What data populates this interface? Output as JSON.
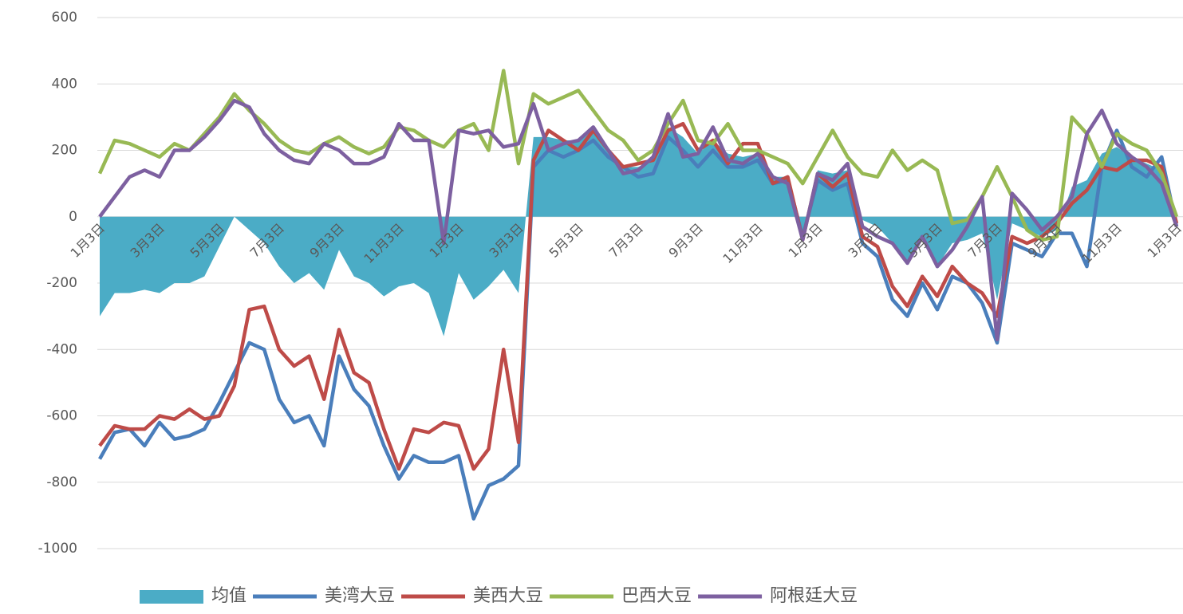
{
  "chart_data": {
    "type": "line",
    "categories": [
      "1月3日",
      null,
      null,
      null,
      "3月3日",
      null,
      null,
      null,
      "5月3日",
      null,
      null,
      null,
      "7月3日",
      null,
      null,
      null,
      "9月3日",
      null,
      null,
      null,
      "11月3日",
      null,
      null,
      null,
      "1月3日",
      null,
      null,
      null,
      "3月3日",
      null,
      null,
      null,
      "5月3日",
      null,
      null,
      null,
      "7月3日",
      null,
      null,
      null,
      "9月3日",
      null,
      null,
      null,
      "11月3日",
      null,
      null,
      null,
      "1月3日",
      null,
      null,
      null,
      "3月3日",
      null,
      null,
      null,
      "5月3日",
      null,
      null,
      null,
      "7月3日",
      null,
      null,
      null,
      "9月3日",
      null,
      null,
      null,
      "11月3日",
      null,
      null,
      null,
      "1月3日"
    ],
    "ylim": [
      -1000,
      600
    ],
    "yticks": [
      -1000,
      -800,
      -600,
      -400,
      -200,
      0,
      200,
      400,
      600
    ],
    "grid": true,
    "legend": "bottom",
    "series": [
      {
        "name": "均值",
        "type": "area",
        "color": "#4bacc6",
        "values": [
          -300,
          -230,
          -230,
          -220,
          -230,
          -200,
          -200,
          -180,
          -90,
          0,
          -40,
          -80,
          -150,
          -200,
          -170,
          -220,
          -100,
          -180,
          -200,
          -240,
          -210,
          -200,
          -230,
          -360,
          -170,
          -250,
          -210,
          -160,
          -230,
          240,
          240,
          230,
          230,
          260,
          210,
          150,
          150,
          170,
          270,
          240,
          190,
          230,
          190,
          180,
          190,
          120,
          120,
          -50,
          140,
          130,
          140,
          -10,
          -30,
          -80,
          -140,
          -60,
          -150,
          -80,
          -70,
          -50,
          -250,
          -20,
          -40,
          -60,
          -40,
          90,
          110,
          190,
          210,
          180,
          160,
          140,
          -20
        ]
      },
      {
        "name": "美湾大豆",
        "type": "line",
        "color": "#4a7ebb",
        "values": [
          -730,
          -650,
          -640,
          -690,
          -620,
          -670,
          -660,
          -640,
          -560,
          -470,
          -380,
          -400,
          -550,
          -620,
          -600,
          -690,
          -420,
          -520,
          -570,
          -690,
          -790,
          -720,
          -740,
          -740,
          -720,
          -910,
          -810,
          -790,
          -750,
          150,
          200,
          180,
          200,
          230,
          180,
          150,
          120,
          130,
          240,
          200,
          150,
          200,
          150,
          150,
          170,
          100,
          110,
          -60,
          110,
          80,
          100,
          -80,
          -120,
          -250,
          -300,
          -200,
          -280,
          -180,
          -200,
          -260,
          -380,
          -80,
          -100,
          -120,
          -50,
          -50,
          -150,
          150,
          260,
          150,
          120,
          180,
          -30
        ]
      },
      {
        "name": "美西大豆",
        "type": "line",
        "color": "#be4b48",
        "values": [
          -690,
          -630,
          -640,
          -640,
          -600,
          -610,
          -580,
          -610,
          -600,
          -510,
          -280,
          -270,
          -400,
          -450,
          -420,
          -550,
          -340,
          -470,
          -500,
          -640,
          -760,
          -640,
          -650,
          -620,
          -630,
          -760,
          -700,
          -400,
          -680,
          170,
          260,
          230,
          200,
          260,
          200,
          150,
          160,
          170,
          260,
          280,
          200,
          230,
          160,
          220,
          220,
          100,
          120,
          -70,
          130,
          90,
          130,
          -60,
          -90,
          -210,
          -270,
          -180,
          -240,
          -150,
          -200,
          -230,
          -300,
          -60,
          -80,
          -60,
          -20,
          40,
          80,
          150,
          140,
          170,
          170,
          150,
          -20
        ]
      },
      {
        "name": "巴西大豆",
        "type": "line",
        "color": "#98b954",
        "values": [
          130,
          230,
          220,
          200,
          180,
          220,
          200,
          250,
          300,
          370,
          320,
          280,
          230,
          200,
          190,
          220,
          240,
          210,
          190,
          210,
          270,
          260,
          230,
          210,
          260,
          280,
          200,
          440,
          160,
          370,
          340,
          360,
          380,
          320,
          260,
          230,
          170,
          200,
          280,
          350,
          230,
          220,
          280,
          200,
          200,
          180,
          160,
          100,
          180,
          260,
          180,
          130,
          120,
          200,
          140,
          170,
          140,
          -20,
          -10,
          60,
          150,
          60,
          -40,
          -70,
          -60,
          300,
          250,
          150,
          250,
          220,
          200,
          130,
          0
        ]
      },
      {
        "name": "阿根廷大豆",
        "type": "line",
        "color": "#7d60a0",
        "values": [
          0,
          60,
          120,
          140,
          120,
          200,
          200,
          240,
          290,
          350,
          330,
          250,
          200,
          170,
          160,
          220,
          200,
          160,
          160,
          180,
          280,
          230,
          230,
          -80,
          260,
          250,
          260,
          210,
          220,
          340,
          200,
          220,
          230,
          270,
          200,
          130,
          140,
          180,
          310,
          180,
          190,
          270,
          170,
          160,
          190,
          120,
          100,
          -70,
          130,
          110,
          160,
          -30,
          -60,
          -80,
          -140,
          -60,
          -150,
          -100,
          -30,
          60,
          -370,
          70,
          20,
          -40,
          0,
          60,
          250,
          320,
          220,
          180,
          150,
          100,
          -30
        ]
      }
    ]
  }
}
